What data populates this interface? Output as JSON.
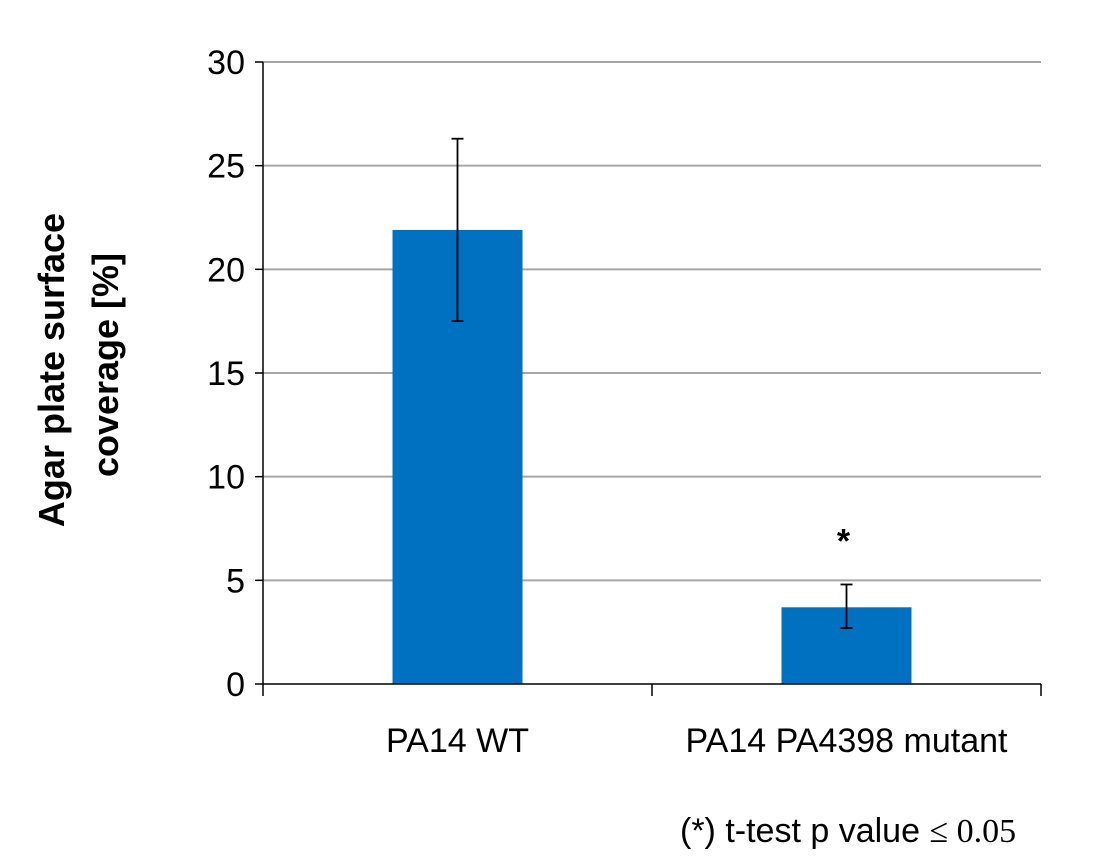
{
  "chart_data": {
    "type": "bar",
    "categories": [
      "PA14 WT",
      "PA14 PA4398 mutant"
    ],
    "values": [
      21.9,
      3.7
    ],
    "error_low": [
      17.5,
      2.7
    ],
    "error_high": [
      26.3,
      4.8
    ],
    "significance": [
      "",
      "*"
    ],
    "title": "",
    "xlabel": "",
    "ylabel_lines": [
      "Agar plate surface",
      "coverage [%]"
    ],
    "ylim": [
      0,
      30
    ],
    "yticks": [
      0,
      5,
      10,
      15,
      20,
      25,
      30
    ],
    "grid": true,
    "bar_color": "#0070C0",
    "grid_color": "#A6A6A6"
  },
  "footnote": {
    "text": "(*) t-test p value ",
    "math": "≤ 0.05"
  }
}
